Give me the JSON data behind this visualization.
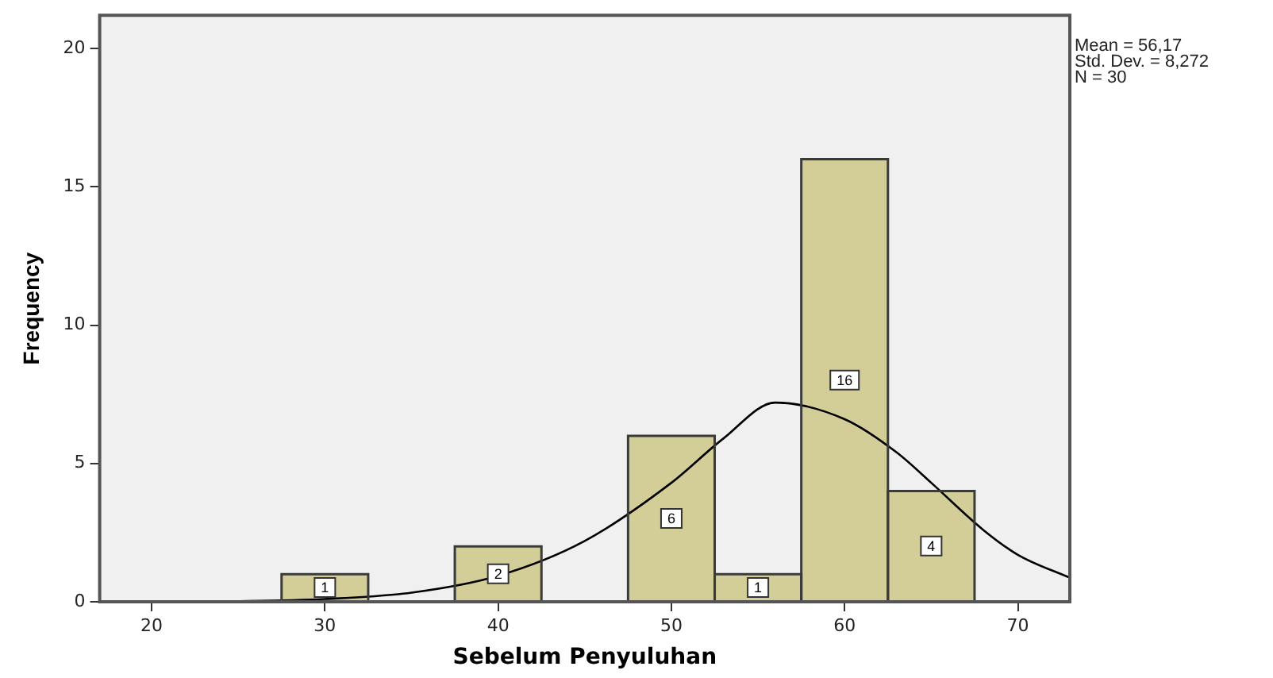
{
  "chart_data": {
    "type": "histogram",
    "xlabel": "Sebelum Penyuluhan",
    "ylabel": "Frequency",
    "bins": [
      27.5,
      32.5,
      37.5,
      42.5,
      47.5,
      52.5,
      57.5,
      62.5,
      67.5
    ],
    "values": [
      1,
      0,
      2,
      0,
      6,
      1,
      16,
      4
    ],
    "value_labels": [
      "1",
      null,
      "2",
      null,
      "6",
      "1",
      "16",
      "4"
    ],
    "color": "#d3ce97",
    "series": [
      {
        "type": "line",
        "color": "#000000",
        "x": [
          20,
          25,
          30,
          35,
          40,
          45,
          50,
          53,
          56,
          60,
          63,
          65,
          68,
          70,
          73
        ],
        "values": [
          0,
          0.02,
          0.1,
          0.33,
          0.94,
          2.2,
          4.3,
          5.9,
          7.2,
          6.6,
          5.4,
          4.3,
          2.6,
          1.7,
          0.87
        ]
      }
    ],
    "xlim": [
      17,
      73
    ],
    "xticks": [
      20,
      30,
      40,
      50,
      60,
      70
    ],
    "ylim": [
      0,
      21.2
    ],
    "yticks": [
      0,
      5,
      10,
      15,
      20
    ],
    "grid": false,
    "legend": false,
    "marker": "none",
    "annotations": [
      "Mean = 56,17\nStd. Dev. = 8,272\nN = 30"
    ]
  }
}
